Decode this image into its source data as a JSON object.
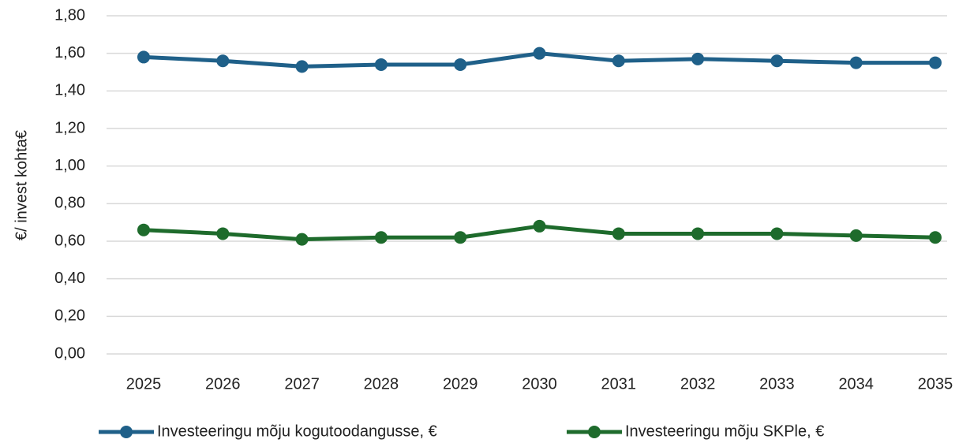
{
  "chart_data": {
    "type": "line",
    "ylabel": "€/ invest kohta€",
    "categories": [
      "2025",
      "2026",
      "2027",
      "2028",
      "2029",
      "2030",
      "2031",
      "2032",
      "2033",
      "2034",
      "2035"
    ],
    "series": [
      {
        "name": "Investeeringu mõju kogutoodangusse, €",
        "color": "#1f6089",
        "values": [
          1.58,
          1.56,
          1.53,
          1.54,
          1.54,
          1.6,
          1.56,
          1.57,
          1.56,
          1.55,
          1.55
        ]
      },
      {
        "name": "Investeeringu mõju SKPle, €",
        "color": "#1e6b2c",
        "values": [
          0.66,
          0.64,
          0.61,
          0.62,
          0.62,
          0.68,
          0.64,
          0.64,
          0.64,
          0.63,
          0.62
        ]
      }
    ],
    "ylim": [
      0,
      1.8
    ],
    "yticks": [
      {
        "value": 0,
        "label": "0,00"
      },
      {
        "value": 0.2,
        "label": "0,20"
      },
      {
        "value": 0.4,
        "label": "0,40"
      },
      {
        "value": 0.6,
        "label": "0,60"
      },
      {
        "value": 0.8,
        "label": "0,80"
      },
      {
        "value": 1.0,
        "label": "1,00"
      },
      {
        "value": 1.2,
        "label": "1,20"
      },
      {
        "value": 1.4,
        "label": "1,40"
      },
      {
        "value": 1.6,
        "label": "1,60"
      },
      {
        "value": 1.8,
        "label": "1,80"
      }
    ],
    "grid": true,
    "legend": "bottom"
  }
}
